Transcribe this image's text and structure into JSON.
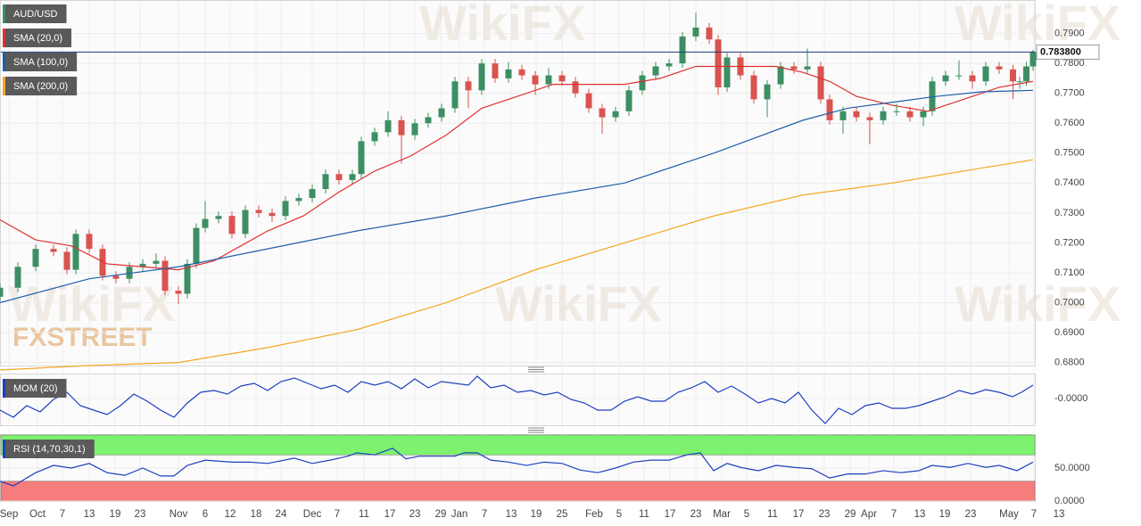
{
  "watermark": "WikiFX",
  "brand": "FXSTREET",
  "chart_data": [
    {
      "type": "candlestick",
      "name": "AUD/USD",
      "up_color": "#3d8f63",
      "down_color": "#d9534f",
      "legend_color": "#3d8f63",
      "xlim": [
        0,
        256
      ],
      "ylim": [
        0.6787,
        0.8012
      ],
      "yticks": [
        {
          "value": 0.79,
          "label": "0.7900"
        },
        {
          "value": 0.78,
          "label": "0.7800"
        },
        {
          "value": 0.77,
          "label": "0.7700"
        },
        {
          "value": 0.76,
          "label": "0.7600"
        },
        {
          "value": 0.75,
          "label": "0.7500"
        },
        {
          "value": 0.74,
          "label": "0.7400"
        },
        {
          "value": 0.73,
          "label": "0.7300"
        },
        {
          "value": 0.72,
          "label": "0.7200"
        },
        {
          "value": 0.71,
          "label": "0.7100"
        },
        {
          "value": 0.7,
          "label": "0.7000"
        },
        {
          "value": 0.69,
          "label": "0.6900"
        },
        {
          "value": 0.68,
          "label": "0.6800"
        }
      ],
      "last_price": {
        "value": 0.7838,
        "label": "0.783800"
      },
      "last_price_color": "#1a3a6e",
      "x": [
        0,
        4,
        8,
        12,
        15,
        17,
        20,
        23,
        26,
        29,
        32,
        35,
        37,
        40,
        42,
        44,
        46,
        49,
        52,
        55,
        58,
        61,
        64,
        67,
        70,
        73,
        76,
        79,
        81,
        84,
        87,
        90,
        93,
        96,
        99,
        102,
        105,
        108,
        111,
        114,
        117,
        120,
        123,
        126,
        129,
        132,
        135,
        138,
        141,
        144,
        147,
        150,
        153,
        156,
        159,
        161,
        163,
        166,
        169,
        172,
        175,
        178,
        181,
        184,
        186,
        189,
        192,
        195,
        198,
        201,
        204,
        207,
        209,
        212,
        215,
        218,
        221,
        224,
        227.1,
        228.6,
        230.1,
        231.6
      ],
      "open": [
        0.702,
        0.705,
        0.712,
        0.718,
        0.717,
        0.711,
        0.723,
        0.718,
        0.709,
        0.708,
        0.712,
        0.713,
        0.714,
        0.704,
        0.703,
        0.713,
        0.725,
        0.728,
        0.729,
        0.723,
        0.731,
        0.73,
        0.729,
        0.734,
        0.735,
        0.738,
        0.743,
        0.741,
        0.743,
        0.754,
        0.757,
        0.761,
        0.756,
        0.76,
        0.762,
        0.765,
        0.774,
        0.771,
        0.78,
        0.775,
        0.778,
        0.776,
        0.773,
        0.776,
        0.774,
        0.77,
        0.765,
        0.762,
        0.764,
        0.771,
        0.776,
        0.779,
        0.78,
        0.789,
        0.792,
        0.788,
        0.772,
        0.782,
        0.776,
        0.768,
        0.773,
        0.779,
        0.778,
        0.779,
        0.768,
        0.761,
        0.764,
        0.762,
        0.761,
        0.764,
        0.764,
        0.762,
        0.764,
        0.774,
        0.776,
        0.776,
        0.774,
        0.779,
        0.778,
        0.774,
        0.774,
        0.779
      ],
      "high": [
        0.7065,
        0.7135,
        0.7195,
        0.7195,
        0.7185,
        0.7245,
        0.7245,
        0.7195,
        0.7105,
        0.7135,
        0.7145,
        0.7165,
        0.7155,
        0.7055,
        0.7145,
        0.7265,
        0.734,
        0.7305,
        0.7305,
        0.7325,
        0.7325,
        0.7315,
        0.7355,
        0.7365,
        0.7395,
        0.7445,
        0.7445,
        0.7445,
        0.7555,
        0.7585,
        0.764,
        0.7625,
        0.7615,
        0.7635,
        0.7665,
        0.7755,
        0.7755,
        0.7815,
        0.7815,
        0.7805,
        0.7795,
        0.7775,
        0.7785,
        0.7775,
        0.7755,
        0.7715,
        0.7665,
        0.7655,
        0.7725,
        0.7775,
        0.7805,
        0.7815,
        0.7905,
        0.797,
        0.7935,
        0.7895,
        0.7835,
        0.7835,
        0.7775,
        0.7745,
        0.7805,
        0.7805,
        0.785,
        0.7805,
        0.7695,
        0.7655,
        0.7655,
        0.7635,
        0.7655,
        0.7665,
        0.7655,
        0.7655,
        0.7755,
        0.7775,
        0.781,
        0.7775,
        0.7805,
        0.7805,
        0.7795,
        0.7755,
        0.7805,
        0.7845
      ],
      "low": [
        0.7005,
        0.7035,
        0.7105,
        0.7155,
        0.7095,
        0.7095,
        0.7165,
        0.7075,
        0.7065,
        0.7065,
        0.7105,
        0.7115,
        0.7025,
        0.6995,
        0.7015,
        0.7115,
        0.7235,
        0.7265,
        0.7215,
        0.7215,
        0.7285,
        0.727,
        0.7275,
        0.7325,
        0.7335,
        0.7365,
        0.7395,
        0.7395,
        0.7415,
        0.7525,
        0.7555,
        0.7465,
        0.7545,
        0.7585,
        0.7605,
        0.7635,
        0.765,
        0.7695,
        0.7735,
        0.7735,
        0.7745,
        0.7695,
        0.7715,
        0.7725,
        0.7685,
        0.7635,
        0.7565,
        0.7605,
        0.7625,
        0.7695,
        0.7745,
        0.7775,
        0.7785,
        0.7875,
        0.7865,
        0.7695,
        0.7705,
        0.7745,
        0.7665,
        0.762,
        0.7715,
        0.7765,
        0.7765,
        0.7665,
        0.7595,
        0.7565,
        0.7605,
        0.753,
        0.7595,
        0.7625,
        0.7605,
        0.759,
        0.7625,
        0.7725,
        0.7745,
        0.7715,
        0.7725,
        0.7765,
        0.768,
        0.7715,
        0.7725,
        0.7775
      ],
      "close": [
        0.705,
        0.712,
        0.718,
        0.717,
        0.711,
        0.723,
        0.718,
        0.709,
        0.708,
        0.712,
        0.713,
        0.714,
        0.704,
        0.703,
        0.713,
        0.725,
        0.728,
        0.729,
        0.723,
        0.731,
        0.73,
        0.729,
        0.734,
        0.735,
        0.738,
        0.743,
        0.741,
        0.743,
        0.754,
        0.757,
        0.761,
        0.756,
        0.76,
        0.762,
        0.765,
        0.774,
        0.771,
        0.78,
        0.775,
        0.778,
        0.776,
        0.773,
        0.776,
        0.774,
        0.77,
        0.765,
        0.762,
        0.764,
        0.771,
        0.776,
        0.779,
        0.78,
        0.789,
        0.792,
        0.788,
        0.772,
        0.782,
        0.776,
        0.768,
        0.773,
        0.779,
        0.778,
        0.779,
        0.768,
        0.761,
        0.764,
        0.762,
        0.761,
        0.764,
        0.764,
        0.762,
        0.764,
        0.774,
        0.776,
        0.776,
        0.774,
        0.779,
        0.778,
        0.774,
        0.774,
        0.779,
        0.7838
      ],
      "series": [
        {
          "name": "SMA (20,0)",
          "color": "#e03030",
          "x": [
            0,
            8,
            16,
            24,
            32,
            40,
            48,
            54,
            60,
            68,
            76,
            84,
            92,
            100,
            108,
            116,
            124,
            132,
            140,
            148,
            156,
            162,
            168,
            174,
            180,
            186,
            192,
            200,
            208,
            216,
            224,
            231.6
          ],
          "values": [
            0.7277,
            0.721,
            0.719,
            0.713,
            0.712,
            0.711,
            0.714,
            0.719,
            0.724,
            0.729,
            0.737,
            0.744,
            0.749,
            0.756,
            0.765,
            0.769,
            0.773,
            0.773,
            0.773,
            0.775,
            0.779,
            0.779,
            0.779,
            0.779,
            0.777,
            0.774,
            0.769,
            0.766,
            0.764,
            0.768,
            0.772,
            0.774
          ]
        },
        {
          "name": "SMA (100,0)",
          "color": "#1f5fa8",
          "x": [
            0,
            20,
            40,
            60,
            80,
            100,
            120,
            140,
            160,
            180,
            190,
            200,
            210,
            220,
            231.6
          ],
          "values": [
            0.7,
            0.708,
            0.712,
            0.718,
            0.724,
            0.729,
            0.735,
            0.74,
            0.75,
            0.761,
            0.765,
            0.767,
            0.769,
            0.7705,
            0.771
          ]
        },
        {
          "name": "SMA (200,0)",
          "color": "#f5a623",
          "x": [
            0,
            20,
            40,
            60,
            80,
            100,
            120,
            140,
            160,
            180,
            200,
            220,
            231.6
          ],
          "values": [
            0.6775,
            0.679,
            0.68,
            0.685,
            0.691,
            0.7,
            0.711,
            0.72,
            0.729,
            0.736,
            0.74,
            0.745,
            0.7478
          ]
        }
      ]
    },
    {
      "type": "line",
      "xlim": [
        0,
        256
      ],
      "ylim": [
        -0.031,
        0.027
      ],
      "yticks": [
        {
          "value": 0,
          "label": "-0.0000"
        }
      ],
      "series": [
        {
          "name": "MOM (20)",
          "color": "#1f3fbf",
          "x": [
            0,
            3,
            6,
            9,
            12,
            15,
            18,
            21,
            24,
            27,
            30,
            33,
            36,
            39,
            42,
            45,
            48,
            51,
            54,
            57,
            60,
            63,
            66,
            69,
            72,
            75,
            78,
            81,
            84,
            87,
            90,
            93,
            96,
            99,
            102,
            105,
            107,
            110,
            113,
            116,
            119,
            122,
            125,
            128,
            131,
            134,
            137,
            140,
            143,
            146,
            149,
            152,
            155,
            158,
            161,
            164,
            167,
            170,
            173,
            176,
            179,
            182,
            185,
            188,
            191,
            194,
            197,
            200,
            203,
            206,
            209,
            212,
            215,
            218,
            221,
            224,
            227,
            229,
            231.6
          ],
          "values": [
            -0.013,
            -0.021,
            -0.008,
            -0.015,
            -0.001,
            0.007,
            -0.008,
            -0.013,
            -0.018,
            -0.008,
            0.005,
            -0.003,
            -0.013,
            -0.021,
            -0.005,
            0.007,
            0.009,
            0.005,
            0.014,
            0.017,
            0.009,
            0.019,
            0.023,
            0.017,
            0.011,
            0.015,
            0.007,
            0.019,
            0.015,
            0.019,
            0.011,
            0.022,
            0.012,
            0.019,
            0.017,
            0.015,
            0.025,
            0.012,
            0.015,
            0.007,
            0.009,
            0.004,
            0.007,
            -0.001,
            -0.005,
            -0.013,
            -0.013,
            -0.003,
            0.002,
            -0.003,
            -0.003,
            0.007,
            0.012,
            0.019,
            0.007,
            0.014,
            0.005,
            -0.005,
            0,
            -0.005,
            0.007,
            -0.013,
            -0.028,
            -0.011,
            -0.018,
            -0.008,
            -0.005,
            -0.011,
            -0.011,
            -0.008,
            -0.003,
            0.002,
            0.009,
            0.005,
            0.01,
            0.007,
            0.002,
            0.007,
            0.015
          ]
        }
      ]
    },
    {
      "type": "line",
      "xlim": [
        0,
        256
      ],
      "ylim": [
        0,
        100
      ],
      "yticks": [
        {
          "value": 50,
          "label": "50.0000"
        },
        {
          "value": 0,
          "label": "0.0000"
        }
      ],
      "bands": [
        {
          "from": 70,
          "to": 100,
          "color": "#7cf26e"
        },
        {
          "from": 0,
          "to": 30,
          "color": "#f77c7c"
        }
      ],
      "xticks": [
        {
          "value": 2,
          "label": "Sep"
        },
        {
          "value": 8.4,
          "label": "Oct"
        },
        {
          "value": 14,
          "label": "7"
        },
        {
          "value": 20,
          "label": "13"
        },
        {
          "value": 25.8,
          "label": "19"
        },
        {
          "value": 31.4,
          "label": "23"
        },
        {
          "value": 40,
          "label": "Nov"
        },
        {
          "value": 46,
          "label": "6"
        },
        {
          "value": 51.6,
          "label": "12"
        },
        {
          "value": 57.4,
          "label": "18"
        },
        {
          "value": 63,
          "label": "24"
        },
        {
          "value": 70,
          "label": "Dec"
        },
        {
          "value": 75.6,
          "label": "7"
        },
        {
          "value": 81.6,
          "label": "11"
        },
        {
          "value": 87.4,
          "label": "17"
        },
        {
          "value": 93,
          "label": "23"
        },
        {
          "value": 98.8,
          "label": "29"
        },
        {
          "value": 103,
          "label": "Jan"
        },
        {
          "value": 108.6,
          "label": "7"
        },
        {
          "value": 114.6,
          "label": "13"
        },
        {
          "value": 120.2,
          "label": "19"
        },
        {
          "value": 126,
          "label": "25"
        },
        {
          "value": 133.2,
          "label": "Feb"
        },
        {
          "value": 138.8,
          "label": "5"
        },
        {
          "value": 144.4,
          "label": "11"
        },
        {
          "value": 150.2,
          "label": "17"
        },
        {
          "value": 156,
          "label": "23"
        },
        {
          "value": 161.8,
          "label": "Mar"
        },
        {
          "value": 167.4,
          "label": "5"
        },
        {
          "value": 173.2,
          "label": "11"
        },
        {
          "value": 179,
          "label": "17"
        },
        {
          "value": 184.8,
          "label": "23"
        },
        {
          "value": 190.6,
          "label": "29"
        },
        {
          "value": 194.8,
          "label": "Apr"
        },
        {
          "value": 200.4,
          "label": "7"
        },
        {
          "value": 206.2,
          "label": "13"
        },
        {
          "value": 211.8,
          "label": "19"
        },
        {
          "value": 217.6,
          "label": "23"
        },
        {
          "value": 226.2,
          "label": "May"
        },
        {
          "value": 231.8,
          "label": "7"
        },
        {
          "value": 237.4,
          "label": "13"
        }
      ],
      "series": [
        {
          "name": "RSI (14,70,30,1)",
          "color": "#1f3fbf",
          "x": [
            0,
            3,
            8,
            12,
            16,
            20,
            24,
            28,
            32,
            36,
            39,
            42,
            46,
            52,
            56,
            60,
            66,
            70,
            74,
            78,
            80,
            84,
            88,
            91,
            94,
            98,
            102,
            104,
            107,
            110,
            114,
            118,
            122,
            126,
            130,
            134,
            138,
            142,
            146,
            150,
            154,
            157,
            160,
            163,
            166,
            170,
            174,
            178,
            182,
            186,
            190,
            194,
            198,
            202,
            206,
            209,
            213,
            217,
            221,
            224,
            228,
            231.6
          ],
          "values": [
            30,
            23,
            43,
            54,
            50,
            57,
            43,
            39,
            50,
            38,
            38,
            54,
            62,
            59,
            59,
            57,
            65,
            57,
            62,
            68,
            73,
            70,
            80,
            64,
            68,
            68,
            68,
            73,
            73,
            62,
            59,
            54,
            59,
            57,
            47,
            43,
            50,
            59,
            62,
            62,
            70,
            73,
            46,
            57,
            51,
            46,
            54,
            51,
            49,
            35,
            41,
            41,
            46,
            43,
            46,
            54,
            51,
            57,
            51,
            54,
            46,
            59
          ]
        }
      ]
    }
  ]
}
